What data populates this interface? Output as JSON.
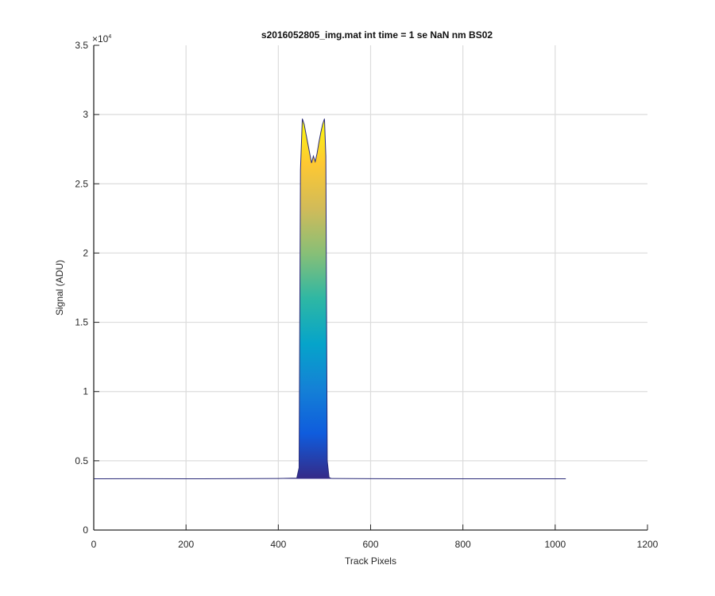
{
  "chart_data": {
    "type": "area",
    "title": "s2016052805_img.mat int time = 1 se  NaN nm BS02",
    "xlabel": "Track Pixels",
    "ylabel": "Signal (ADU)",
    "y_exponent_label": "×10",
    "y_exponent": "4",
    "xlim": [
      0,
      1200
    ],
    "ylim": [
      0,
      35000
    ],
    "xticks": [
      0,
      200,
      400,
      600,
      800,
      1000,
      1200
    ],
    "xtick_labels": [
      "0",
      "200",
      "400",
      "600",
      "800",
      "1000",
      "1200"
    ],
    "yticks": [
      0,
      5000,
      10000,
      15000,
      20000,
      25000,
      30000,
      35000
    ],
    "ytick_labels": [
      "0",
      "0.5",
      "1",
      "1.5",
      "2",
      "2.5",
      "3",
      "3.5"
    ],
    "grid": true,
    "colormap": [
      "#352a87",
      "#0f5cdd",
      "#1481d6",
      "#06a4ca",
      "#2eb7a4",
      "#87bf77",
      "#d1bb59",
      "#fec832",
      "#f9fb0e"
    ],
    "baseline_color": "#2a2a78",
    "series": [
      {
        "x": [
          0,
          100,
          200,
          300,
          400,
          440,
          445,
          448,
          452,
          456,
          460,
          464,
          468,
          472,
          476,
          480,
          484,
          488,
          492,
          496,
          500,
          503,
          506,
          510,
          515,
          600,
          700,
          800,
          900,
          1000,
          1023
        ],
        "y": [
          3700,
          3710,
          3700,
          3710,
          3720,
          3750,
          4500,
          26000,
          29700,
          29300,
          28600,
          27900,
          27200,
          26500,
          27000,
          26600,
          27200,
          28000,
          28700,
          29300,
          29700,
          27000,
          5000,
          3800,
          3720,
          3710,
          3700,
          3700,
          3700,
          3700,
          3700
        ]
      }
    ]
  }
}
